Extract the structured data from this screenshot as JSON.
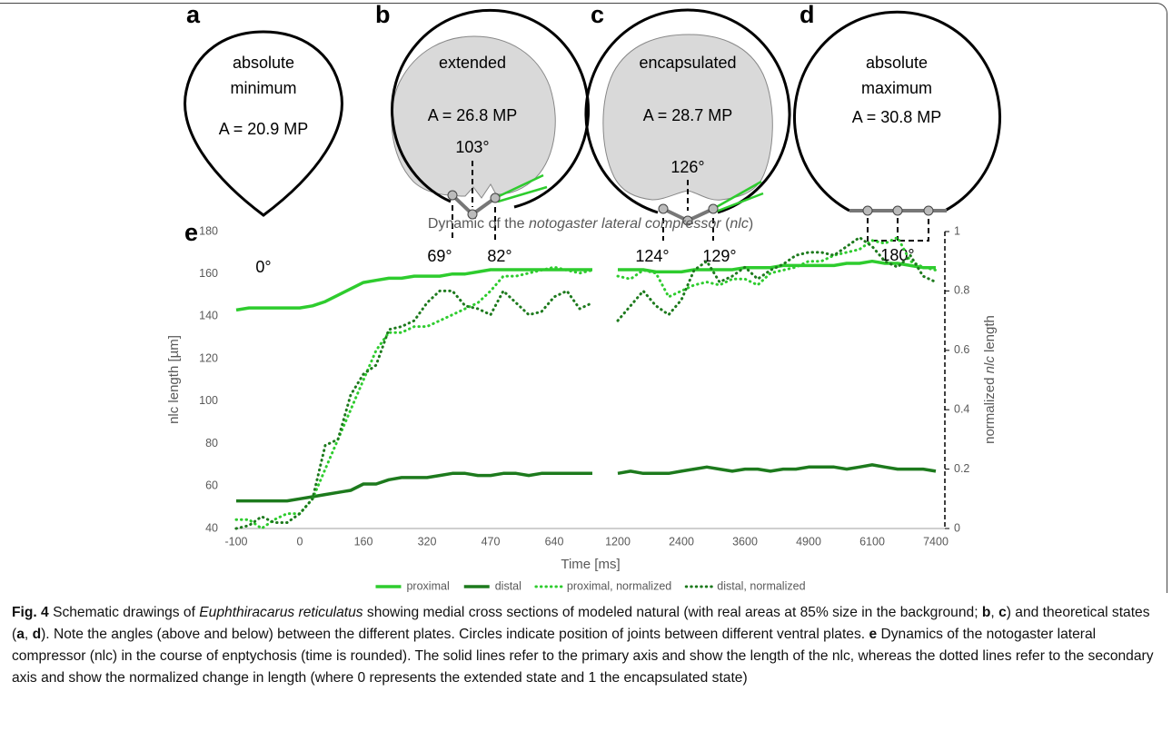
{
  "panels": [
    {
      "letter": "a",
      "label": [
        "absolute",
        "minimum"
      ],
      "area": "A = 20.9 MP",
      "angles_bottom": [
        "0°"
      ]
    },
    {
      "letter": "b",
      "label": [
        "extended"
      ],
      "area": "A = 26.8 MP",
      "angle_top": "103°",
      "angles_bottom": [
        "69°",
        "82°"
      ]
    },
    {
      "letter": "c",
      "label": [
        "encapsulated"
      ],
      "area": "A = 28.7 MP",
      "angle_top": "126°",
      "angles_bottom": [
        "124°",
        "129°"
      ]
    },
    {
      "letter": "d",
      "label": [
        "absolute",
        "maximum"
      ],
      "area": "A = 30.8 MP",
      "angles_bottom": [
        "180°"
      ]
    }
  ],
  "chart_data": {
    "type": "line",
    "panel_letter": "e",
    "title_segments": [
      "Dynamic of the ",
      "notogaster lateral compressor",
      " (",
      "nlc",
      ")"
    ],
    "x_label": "Time [ms]",
    "y_label": "nlc length [µm]",
    "y2_label_segments": [
      "normalized ",
      "nlc",
      " length"
    ],
    "categories": [
      "-100",
      null,
      null,
      null,
      null,
      "0",
      null,
      null,
      null,
      null,
      "160",
      null,
      null,
      null,
      null,
      "320",
      null,
      null,
      null,
      null,
      "470",
      null,
      null,
      null,
      null,
      "640",
      null,
      null,
      null,
      null,
      "1200",
      null,
      null,
      null,
      null,
      "2400",
      null,
      null,
      null,
      null,
      "3600",
      null,
      null,
      null,
      null,
      "4900",
      null,
      null,
      null,
      null,
      "6100",
      null,
      null,
      null,
      null,
      "7400"
    ],
    "ylim": [
      40,
      180
    ],
    "yticks": [
      40,
      60,
      80,
      100,
      120,
      140,
      160,
      180
    ],
    "y2lim": [
      0,
      1
    ],
    "y2ticks": [
      0,
      0.2,
      0.4,
      0.6,
      0.8,
      1
    ],
    "legend": "bottom",
    "series": [
      {
        "name": "proximal",
        "color": "#2ecc2e",
        "line_style": "solid",
        "values": [
          143,
          144,
          144,
          144,
          144,
          144,
          145,
          147,
          150,
          153,
          156,
          157,
          158,
          158,
          159,
          159,
          159,
          160,
          160,
          161,
          162,
          162,
          162,
          162,
          162,
          162,
          162,
          162,
          162,
          null,
          162,
          162,
          162,
          161,
          161,
          161,
          162,
          162,
          162,
          162,
          163,
          163,
          163,
          164,
          164,
          164,
          164,
          164,
          165,
          165,
          166,
          165,
          165,
          164,
          163,
          163
        ]
      },
      {
        "name": "distal",
        "color": "#1d7a1d",
        "line_style": "solid",
        "values": [
          53,
          53,
          53,
          53,
          53,
          54,
          55,
          56,
          57,
          58,
          61,
          61,
          63,
          64,
          64,
          64,
          65,
          66,
          66,
          65,
          65,
          66,
          66,
          65,
          66,
          66,
          66,
          66,
          66,
          null,
          66,
          67,
          66,
          66,
          66,
          67,
          68,
          69,
          68,
          67,
          68,
          68,
          67,
          68,
          68,
          69,
          69,
          69,
          68,
          69,
          70,
          69,
          68,
          68,
          68,
          67
        ]
      },
      {
        "name": "proximal, normalized",
        "color": "#2ecc2e",
        "line_style": "dotted",
        "axis": "y2",
        "values": [
          0.03,
          0.03,
          0,
          0.03,
          0.05,
          0.05,
          0.1,
          0.2,
          0.3,
          0.4,
          0.5,
          0.6,
          0.66,
          0.66,
          0.68,
          0.68,
          0.7,
          0.72,
          0.74,
          0.76,
          0.8,
          0.85,
          0.85,
          0.86,
          0.87,
          0.88,
          0.87,
          0.86,
          0.87,
          null,
          0.85,
          0.84,
          0.87,
          0.86,
          0.78,
          0.8,
          0.82,
          0.83,
          0.82,
          0.84,
          0.84,
          0.82,
          0.86,
          0.87,
          0.88,
          0.9,
          0.9,
          0.92,
          0.93,
          0.94,
          0.97,
          0.96,
          0.98,
          0.9,
          0.88,
          0.87
        ]
      },
      {
        "name": "distal, normalized",
        "color": "#1d7a1d",
        "line_style": "dotted",
        "axis": "y2",
        "values": [
          0,
          0.01,
          0.04,
          0.02,
          0.02,
          0.05,
          0.1,
          0.28,
          0.3,
          0.45,
          0.52,
          0.55,
          0.67,
          0.68,
          0.7,
          0.76,
          0.8,
          0.8,
          0.75,
          0.74,
          0.72,
          0.8,
          0.76,
          0.72,
          0.73,
          0.78,
          0.8,
          0.74,
          0.76,
          null,
          0.7,
          0.75,
          0.8,
          0.75,
          0.72,
          0.77,
          0.87,
          0.9,
          0.83,
          0.85,
          0.88,
          0.84,
          0.87,
          0.89,
          0.92,
          0.93,
          0.93,
          0.92,
          0.95,
          0.98,
          0.95,
          0.9,
          0.88,
          0.92,
          0.85,
          0.83
        ]
      }
    ]
  },
  "caption": [
    {
      "text": "Fig. 4",
      "style": "bold"
    },
    {
      "text": " Schematic drawings of "
    },
    {
      "text": "Euphthiracarus reticulatus",
      "style": "italic"
    },
    {
      "text": " showing medial cross sections of modeled natural (with real areas at 85% size in the background; "
    },
    {
      "text": "b",
      "style": "bold"
    },
    {
      "text": ", "
    },
    {
      "text": "c",
      "style": "bold"
    },
    {
      "text": ") and theoretical states ("
    },
    {
      "text": "a",
      "style": "bold"
    },
    {
      "text": ", "
    },
    {
      "text": "d",
      "style": "bold"
    },
    {
      "text": "). Note the angles (above and below) between the different plates. Circles indicate position of joints between different ventral plates. "
    },
    {
      "text": "e",
      "style": "bold"
    },
    {
      "text": " Dynamics of the notogaster lateral compressor (nlc) in the course of enptychosis (time is rounded). The solid lines refer to the primary axis and show the length of the nlc, whereas the dotted lines refer to the secondary axis and show the normalized change in length (where 0 represents the extended state and 1 the encapsulated state)"
    }
  ]
}
